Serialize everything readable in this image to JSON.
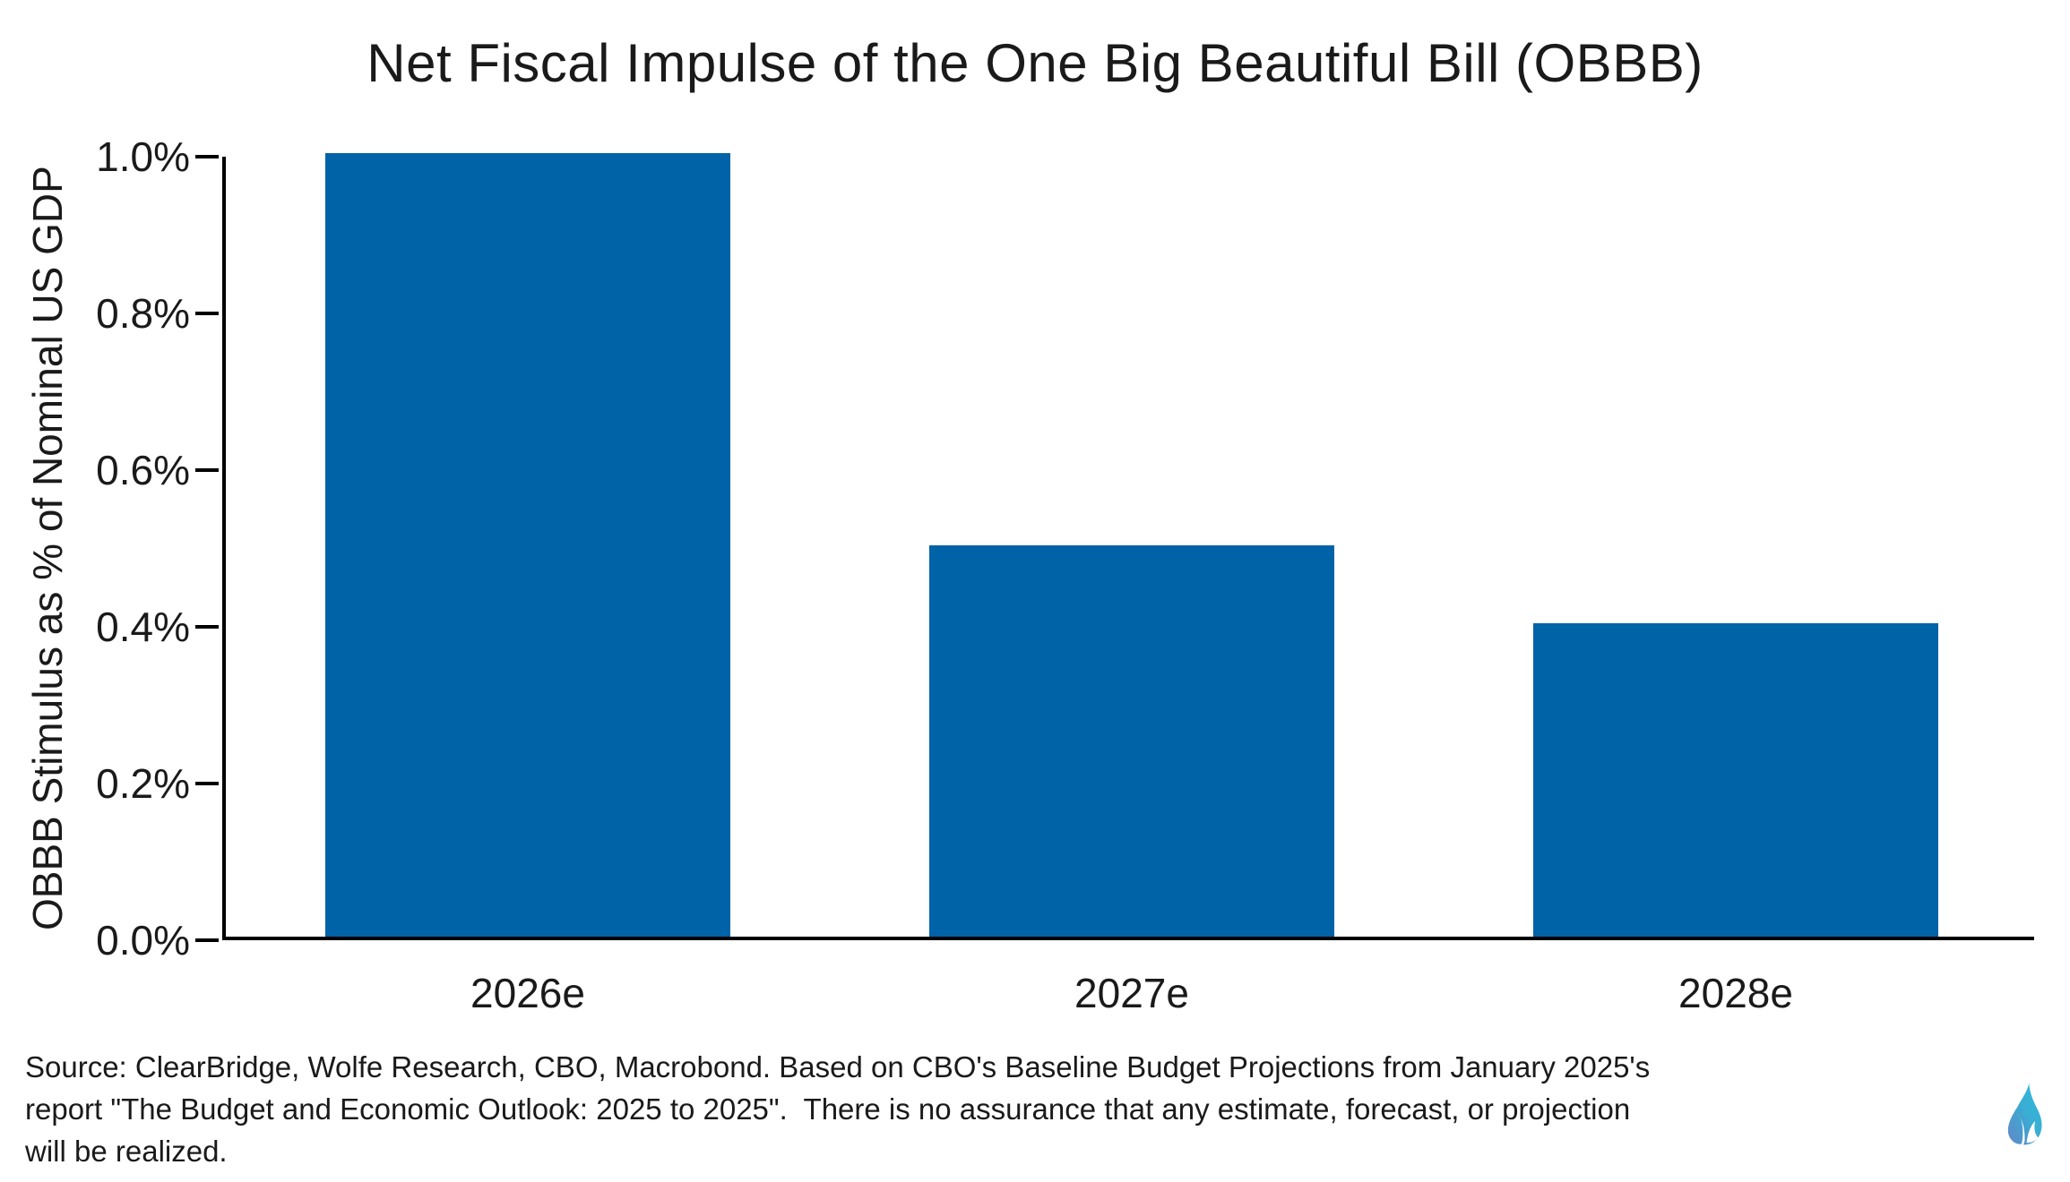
{
  "title": "Net Fiscal Impulse of the One Big Beautiful Bill (OBBB)",
  "chart_data": {
    "type": "bar",
    "title": "Net Fiscal Impulse of the One Big Beautiful Bill (OBBB)",
    "categories": [
      "2026e",
      "2027e",
      "2028e"
    ],
    "values": [
      1.0,
      0.5,
      0.4
    ],
    "unit": "% of GDP",
    "xlabel": "",
    "ylabel": "OBBB Stimulus as % of Nominal US GDP",
    "ylim": [
      0,
      1.0
    ],
    "yticks": [
      {
        "value": 0.0,
        "label": "0.0%"
      },
      {
        "value": 0.2,
        "label": "0.2%"
      },
      {
        "value": 0.4,
        "label": "0.4%"
      },
      {
        "value": 0.6,
        "label": "0.6%"
      },
      {
        "value": 0.8,
        "label": "0.8%"
      },
      {
        "value": 1.0,
        "label": "1.0%"
      }
    ],
    "grid": false,
    "legend": false,
    "bar_color": "#0063A8",
    "axis_color": "#000000"
  },
  "source": {
    "lines": [
      "Source: ClearBridge, Wolfe Research, CBO, Macrobond. Based on CBO's Baseline Budget Projections from January 2025's",
      "report \"The Budget and Economic Outlook: 2025 to 2025\".  There is no assurance that any estimate, forecast, or projection",
      "will be realized."
    ]
  },
  "logo": {
    "name": "flame-logo",
    "gradient_top": "#2FB8DA",
    "gradient_bottom": "#5584C6"
  }
}
